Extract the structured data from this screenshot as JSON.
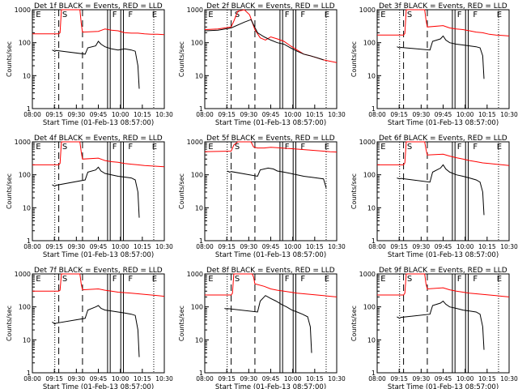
{
  "chart_data": [
    {
      "type": "line",
      "title": "Det 1f BLACK = Events, RED = LLD",
      "xlabel": "Start Time (01-Feb-13 08:57:00)",
      "ylabel": "Counts/sec",
      "xlim": [
        0,
        100
      ],
      "ylim": [
        1,
        1000
      ],
      "yscale": "log",
      "x_ticks": [
        "08:00",
        "09:15",
        "09:30",
        "09:45",
        "10:00",
        "10:15",
        "10:30"
      ],
      "y_ticks": [
        "1",
        "10",
        "100",
        "1000"
      ],
      "markers": [
        "E",
        "S",
        "F",
        "F",
        "E"
      ],
      "series": [
        {
          "name": "LLD",
          "color": "#ff0000",
          "x": [
            0,
            20,
            21,
            22,
            36,
            37,
            38,
            50,
            55,
            60,
            65,
            70,
            75,
            80,
            85,
            90,
            95,
            100
          ],
          "y": [
            185,
            185,
            200,
            1000,
            1000,
            400,
            210,
            220,
            260,
            240,
            230,
            200,
            195,
            195,
            185,
            180,
            180,
            175
          ]
        },
        {
          "name": "Events",
          "color": "#000000",
          "x": [
            15,
            17,
            18,
            40,
            42,
            48,
            50,
            52,
            55,
            60,
            65,
            70,
            75,
            78,
            80,
            81
          ],
          "y": [
            60,
            55,
            58,
            45,
            70,
            80,
            110,
            90,
            75,
            65,
            60,
            65,
            60,
            55,
            20,
            4
          ]
        }
      ]
    },
    {
      "type": "line",
      "title": "Det 2f BLACK = Events, RED = LLD",
      "xlabel": "Start Time (01-Feb-13 08:57:00)",
      "ylabel": "Counts/sec",
      "xlim": [
        0,
        100
      ],
      "ylim": [
        1,
        1000
      ],
      "yscale": "log",
      "x_ticks": [
        "08:00",
        "09:15",
        "09:30",
        "09:45",
        "10:00",
        "10:15",
        "10:30"
      ],
      "y_ticks": [
        "1",
        "10",
        "100",
        "1000"
      ],
      "markers": [
        "E",
        "S",
        "F",
        "F",
        "E"
      ],
      "series": [
        {
          "name": "LLD",
          "color": "#ff0000",
          "x": [
            0,
            10,
            20,
            22,
            25,
            30,
            34,
            38,
            42,
            46,
            50,
            55,
            60,
            65,
            70,
            75,
            80,
            90,
            100
          ],
          "y": [
            250,
            260,
            300,
            450,
            900,
            1000,
            700,
            250,
            140,
            120,
            150,
            130,
            110,
            80,
            60,
            45,
            40,
            30,
            25
          ]
        },
        {
          "name": "Events",
          "color": "#000000",
          "x": [
            0,
            10,
            20,
            30,
            35,
            40,
            45,
            50,
            55,
            60,
            65,
            70,
            75,
            80,
            85,
            90
          ],
          "y": [
            230,
            240,
            280,
            420,
            500,
            200,
            150,
            120,
            100,
            90,
            70,
            55,
            45,
            40,
            35,
            30
          ]
        }
      ]
    },
    {
      "type": "line",
      "title": "Det 3f BLACK = Events, RED = LLD",
      "xlabel": "Start Time (01-Feb-13 08:57:00)",
      "ylabel": "Counts/sec",
      "xlim": [
        0,
        100
      ],
      "ylim": [
        1,
        1000
      ],
      "yscale": "log",
      "x_ticks": [
        "08:00",
        "09:15",
        "09:30",
        "09:45",
        "10:00",
        "10:15",
        "10:30"
      ],
      "y_ticks": [
        "1",
        "10",
        "100",
        "1000"
      ],
      "markers": [
        "E",
        "S",
        "F",
        "F",
        "E"
      ],
      "series": [
        {
          "name": "LLD",
          "color": "#ff0000",
          "x": [
            0,
            20,
            21,
            22,
            36,
            37,
            38,
            50,
            55,
            60,
            65,
            70,
            75,
            80,
            85,
            90,
            95,
            100
          ],
          "y": [
            170,
            170,
            190,
            1000,
            1000,
            500,
            300,
            330,
            280,
            260,
            250,
            230,
            210,
            200,
            180,
            170,
            165,
            160
          ]
        },
        {
          "name": "Events",
          "color": "#000000",
          "x": [
            15,
            17,
            18,
            40,
            42,
            48,
            50,
            52,
            55,
            60,
            65,
            70,
            75,
            78,
            80,
            81
          ],
          "y": [
            75,
            70,
            72,
            60,
            110,
            130,
            160,
            120,
            100,
            90,
            85,
            80,
            75,
            70,
            40,
            8
          ]
        }
      ]
    },
    {
      "type": "line",
      "title": "Det 4f BLACK = Events, RED = LLD",
      "xlabel": "Start Time (01-Feb-13 08:57:00)",
      "ylabel": "Counts/sec",
      "xlim": [
        0,
        100
      ],
      "ylim": [
        1,
        1000
      ],
      "yscale": "log",
      "x_ticks": [
        "08:00",
        "09:15",
        "09:30",
        "09:45",
        "10:00",
        "10:15",
        "10:30"
      ],
      "y_ticks": [
        "1",
        "10",
        "100",
        "1000"
      ],
      "markers": [
        "E",
        "S",
        "F",
        "F",
        "E"
      ],
      "series": [
        {
          "name": "LLD",
          "color": "#ff0000",
          "x": [
            0,
            20,
            21,
            22,
            36,
            37,
            38,
            50,
            55,
            60,
            65,
            70,
            75,
            80,
            85,
            90,
            95,
            100
          ],
          "y": [
            200,
            200,
            220,
            1000,
            1000,
            500,
            300,
            320,
            270,
            250,
            240,
            220,
            210,
            200,
            190,
            185,
            180,
            175
          ]
        },
        {
          "name": "Events",
          "color": "#000000",
          "x": [
            15,
            17,
            18,
            40,
            42,
            48,
            50,
            52,
            55,
            60,
            65,
            70,
            75,
            78,
            80,
            81
          ],
          "y": [
            50,
            45,
            48,
            70,
            120,
            140,
            170,
            130,
            110,
            100,
            90,
            85,
            80,
            70,
            30,
            5
          ]
        }
      ]
    },
    {
      "type": "line",
      "title": "Det 5f BLACK = Events, RED = LLD",
      "xlabel": "Start Time (01-Feb-13 08:57:00)",
      "ylabel": "Counts/sec",
      "xlim": [
        0,
        100
      ],
      "ylim": [
        1,
        1000
      ],
      "yscale": "log",
      "x_ticks": [
        "08:00",
        "09:15",
        "09:30",
        "09:45",
        "10:00",
        "10:15",
        "10:30"
      ],
      "y_ticks": [
        "1",
        "10",
        "100",
        "1000"
      ],
      "markers": [
        "E",
        "S",
        "F",
        "F",
        "E"
      ],
      "series": [
        {
          "name": "LLD",
          "color": "#ff0000",
          "x": [
            0,
            20,
            22,
            25,
            35,
            37,
            40,
            45,
            50,
            55,
            60,
            65,
            70,
            75,
            80,
            85,
            90,
            95,
            100
          ],
          "y": [
            500,
            520,
            800,
            1000,
            1000,
            700,
            650,
            650,
            680,
            660,
            640,
            620,
            600,
            580,
            560,
            540,
            520,
            500,
            490
          ]
        },
        {
          "name": "Events",
          "color": "#000000",
          "x": [
            17,
            19,
            20,
            40,
            42,
            48,
            52,
            55,
            60,
            65,
            70,
            75,
            80,
            85,
            90,
            92
          ],
          "y": [
            130,
            120,
            125,
            90,
            140,
            160,
            150,
            130,
            120,
            110,
            100,
            90,
            85,
            80,
            75,
            40
          ]
        }
      ]
    },
    {
      "type": "line",
      "title": "Det 6f BLACK = Events, RED = LLD",
      "xlabel": "Start Time (01-Feb-13 08:57:00)",
      "ylabel": "Counts/sec",
      "xlim": [
        0,
        100
      ],
      "ylim": [
        1,
        1000
      ],
      "yscale": "log",
      "x_ticks": [
        "08:00",
        "09:15",
        "09:30",
        "09:45",
        "10:00",
        "10:15",
        "10:30"
      ],
      "y_ticks": [
        "1",
        "10",
        "100",
        "1000"
      ],
      "markers": [
        "E",
        "S",
        "F",
        "F",
        "E"
      ],
      "series": [
        {
          "name": "LLD",
          "color": "#ff0000",
          "x": [
            0,
            20,
            21,
            22,
            36,
            37,
            38,
            50,
            55,
            60,
            65,
            70,
            75,
            80,
            85,
            90,
            95,
            100
          ],
          "y": [
            200,
            200,
            230,
            1000,
            1000,
            600,
            400,
            420,
            370,
            330,
            300,
            270,
            250,
            230,
            220,
            210,
            200,
            190
          ]
        },
        {
          "name": "Events",
          "color": "#000000",
          "x": [
            15,
            17,
            18,
            40,
            42,
            48,
            50,
            52,
            55,
            60,
            65,
            70,
            75,
            78,
            80,
            81
          ],
          "y": [
            80,
            75,
            78,
            60,
            120,
            160,
            200,
            150,
            120,
            100,
            90,
            80,
            70,
            60,
            30,
            6
          ]
        }
      ]
    },
    {
      "type": "line",
      "title": "Det 7f BLACK = Events, RED = LLD",
      "xlabel": "Start Time (01-Feb-13 08:57:00)",
      "ylabel": "Counts/sec",
      "xlim": [
        0,
        100
      ],
      "ylim": [
        1,
        1000
      ],
      "yscale": "log",
      "x_ticks": [
        "08:00",
        "09:15",
        "09:30",
        "09:45",
        "10:00",
        "10:15",
        "10:30"
      ],
      "y_ticks": [
        "1",
        "10",
        "100",
        "1000"
      ],
      "markers": [
        "E",
        "S",
        "F",
        "F",
        "E"
      ],
      "series": [
        {
          "name": "LLD",
          "color": "#ff0000",
          "x": [
            0,
            20,
            21,
            22,
            36,
            37,
            38,
            50,
            55,
            60,
            65,
            70,
            75,
            80,
            85,
            90,
            95,
            100
          ],
          "y": [
            300,
            300,
            320,
            1000,
            1000,
            500,
            330,
            350,
            320,
            300,
            280,
            270,
            260,
            250,
            240,
            230,
            220,
            210
          ]
        },
        {
          "name": "Events",
          "color": "#000000",
          "x": [
            15,
            17,
            18,
            40,
            42,
            48,
            50,
            52,
            55,
            60,
            65,
            70,
            75,
            78,
            80,
            81
          ],
          "y": [
            35,
            30,
            32,
            45,
            80,
            100,
            110,
            90,
            80,
            75,
            70,
            65,
            60,
            55,
            20,
            3
          ]
        }
      ]
    },
    {
      "type": "line",
      "title": "Det 8f BLACK = Events, RED = LLD",
      "xlabel": "Start Time (01-Feb-13 08:57:00)",
      "ylabel": "Counts/sec",
      "xlim": [
        0,
        100
      ],
      "ylim": [
        1,
        1000
      ],
      "yscale": "log",
      "x_ticks": [
        "08:00",
        "09:15",
        "09:30",
        "09:45",
        "10:00",
        "10:15",
        "10:30"
      ],
      "y_ticks": [
        "1",
        "10",
        "100",
        "1000"
      ],
      "markers": [
        "E",
        "S",
        "F",
        "F",
        "E"
      ],
      "series": [
        {
          "name": "LLD",
          "color": "#ff0000",
          "x": [
            0,
            20,
            21,
            22,
            36,
            37,
            38,
            45,
            50,
            55,
            60,
            65,
            70,
            75,
            80,
            85,
            90,
            95,
            100
          ],
          "y": [
            230,
            230,
            260,
            1000,
            1000,
            800,
            500,
            420,
            350,
            320,
            300,
            280,
            260,
            250,
            240,
            230,
            220,
            210,
            200
          ]
        },
        {
          "name": "Events",
          "color": "#000000",
          "x": [
            15,
            17,
            18,
            40,
            42,
            46,
            50,
            54,
            58,
            62,
            66,
            70,
            74,
            78,
            80,
            81
          ],
          "y": [
            90,
            85,
            88,
            70,
            150,
            220,
            180,
            150,
            120,
            100,
            80,
            70,
            60,
            50,
            25,
            4
          ]
        }
      ]
    },
    {
      "type": "line",
      "title": "Det 9f BLACK = Events, RED = LLD",
      "xlabel": "Start Time (01-Feb-13 08:57:00)",
      "ylabel": "Counts/sec",
      "xlim": [
        0,
        100
      ],
      "ylim": [
        1,
        1000
      ],
      "yscale": "log",
      "x_ticks": [
        "08:00",
        "09:15",
        "09:30",
        "09:45",
        "10:00",
        "10:15",
        "10:30"
      ],
      "y_ticks": [
        "1",
        "10",
        "100",
        "1000"
      ],
      "markers": [
        "E",
        "S",
        "F",
        "F",
        "E"
      ],
      "series": [
        {
          "name": "LLD",
          "color": "#ff0000",
          "x": [
            0,
            20,
            21,
            22,
            36,
            37,
            38,
            50,
            55,
            60,
            65,
            70,
            75,
            80,
            85,
            90,
            95,
            100
          ],
          "y": [
            230,
            230,
            260,
            1000,
            1000,
            500,
            350,
            380,
            330,
            300,
            280,
            260,
            250,
            240,
            230,
            220,
            210,
            200
          ]
        },
        {
          "name": "Events",
          "color": "#000000",
          "x": [
            15,
            17,
            18,
            40,
            42,
            48,
            50,
            52,
            55,
            60,
            65,
            70,
            75,
            78,
            80,
            81
          ],
          "y": [
            50,
            45,
            48,
            60,
            110,
            130,
            150,
            120,
            100,
            90,
            80,
            75,
            70,
            60,
            25,
            5
          ]
        }
      ]
    }
  ]
}
